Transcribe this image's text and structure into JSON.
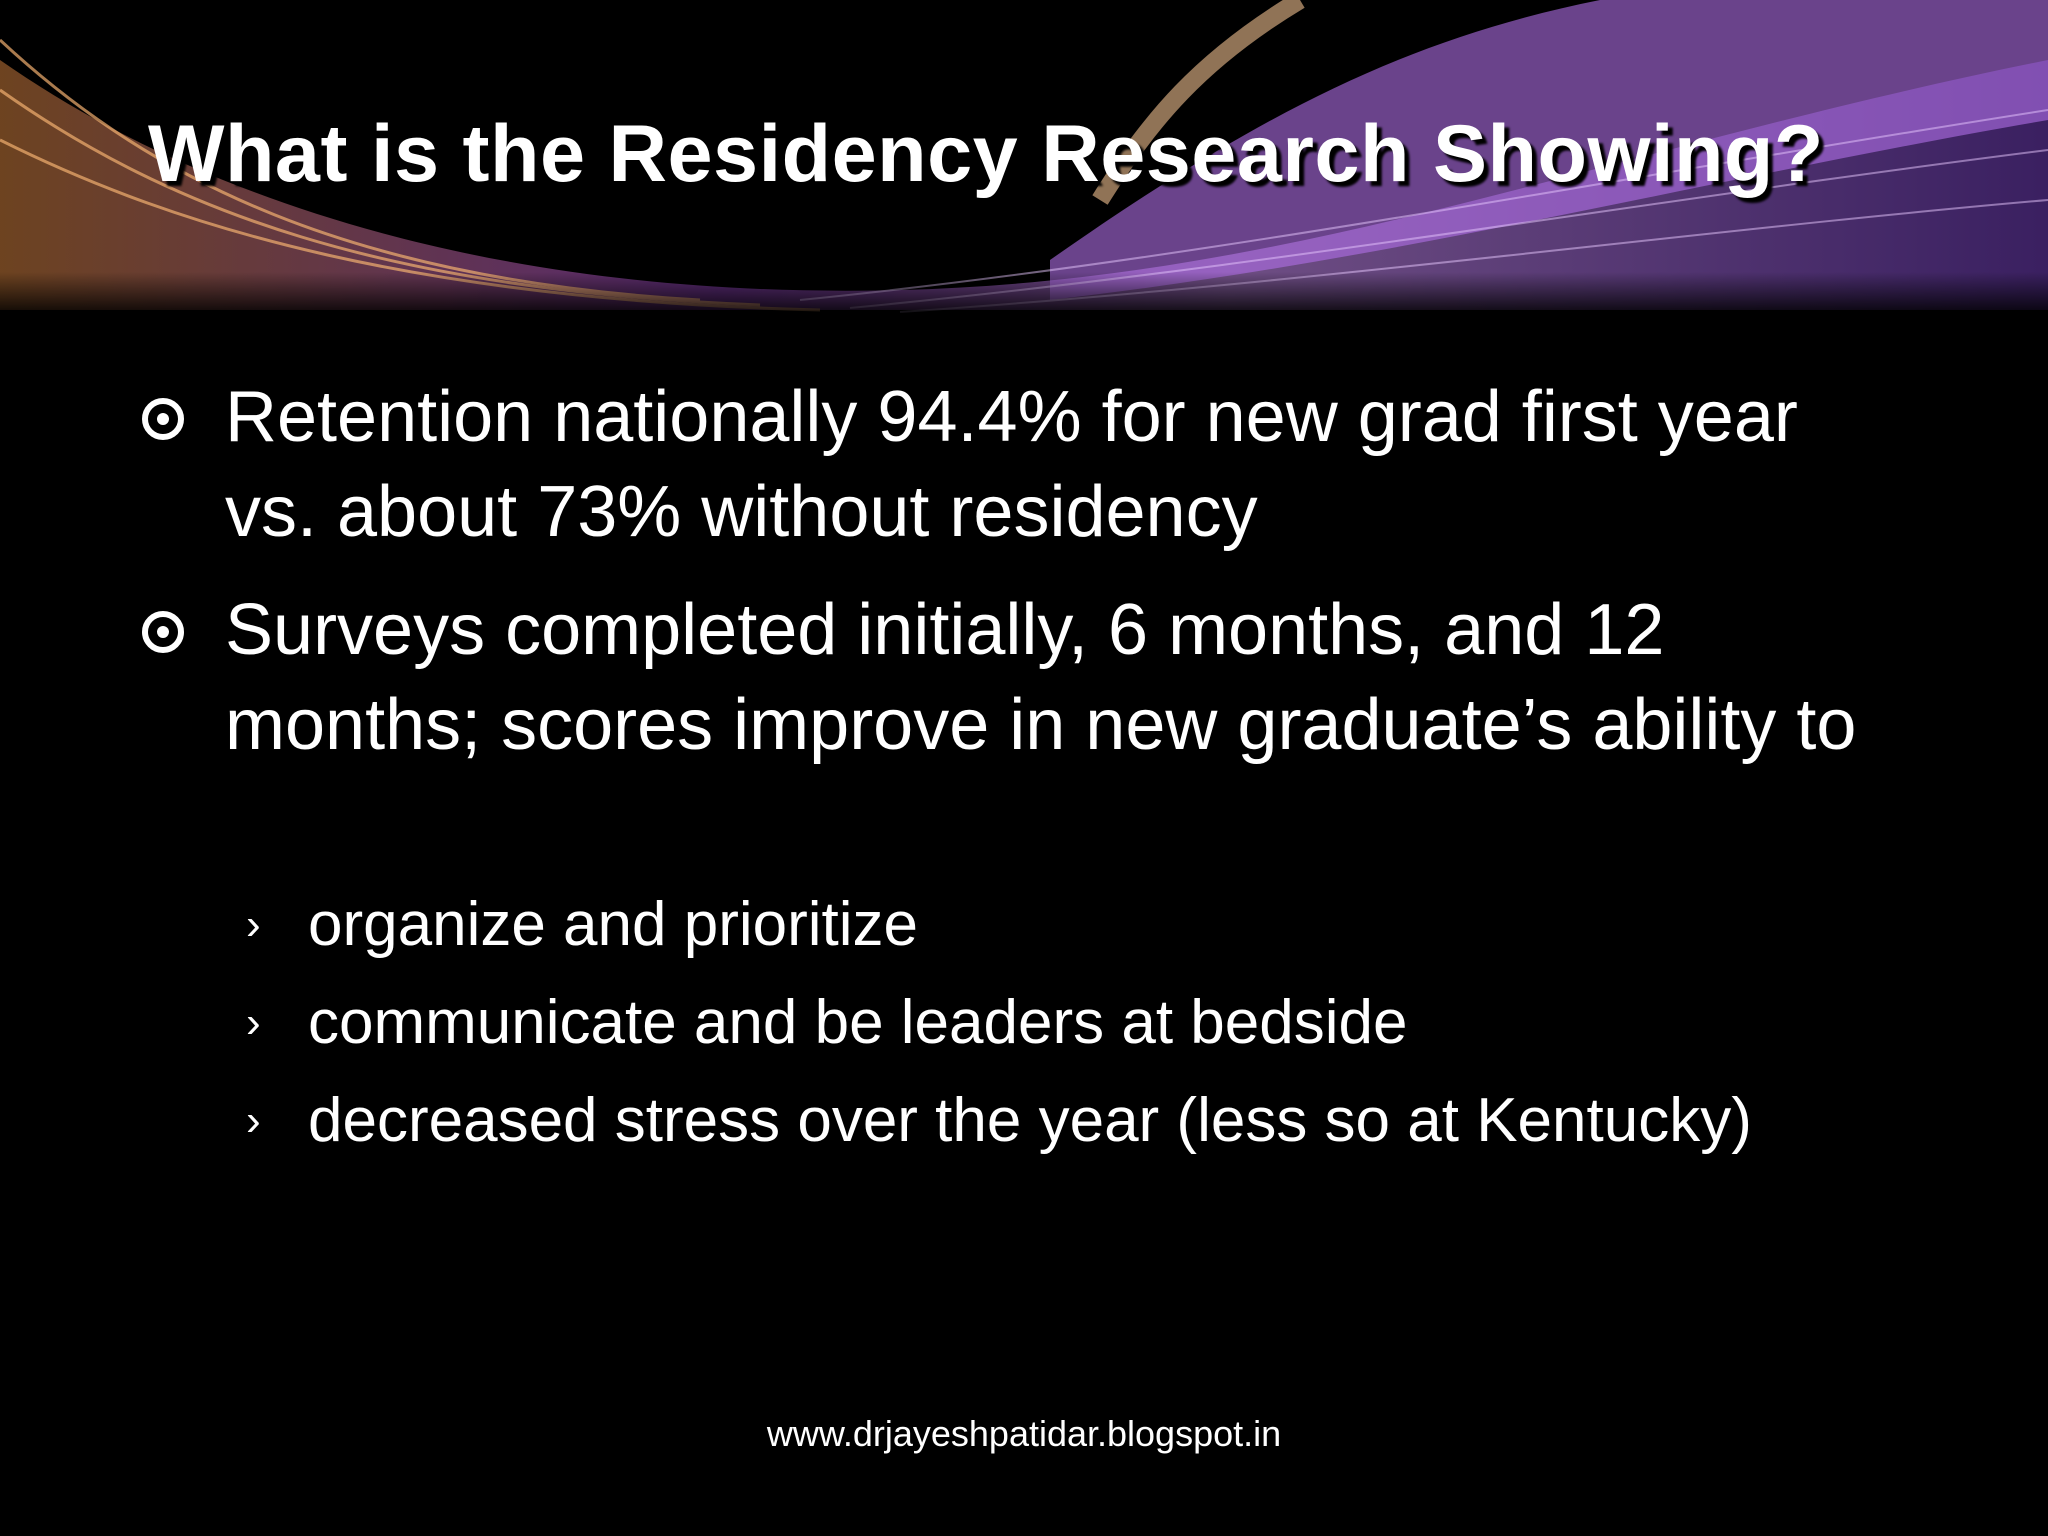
{
  "title": "What is the Residency Research Showing?",
  "bullets": [
    {
      "text": "Retention nationally 94.4% for new grad first year vs. about 73% without residency"
    },
    {
      "text": "Surveys completed initially, 6 months, and 12 months; scores improve in new graduate’s ability to",
      "subitems": [
        "organize and prioritize",
        "communicate and be leaders at bedside",
        "decreased stress over the year (less so at Kentucky)"
      ]
    }
  ],
  "footer": "www.drjayeshpatidar.blogspot.in"
}
